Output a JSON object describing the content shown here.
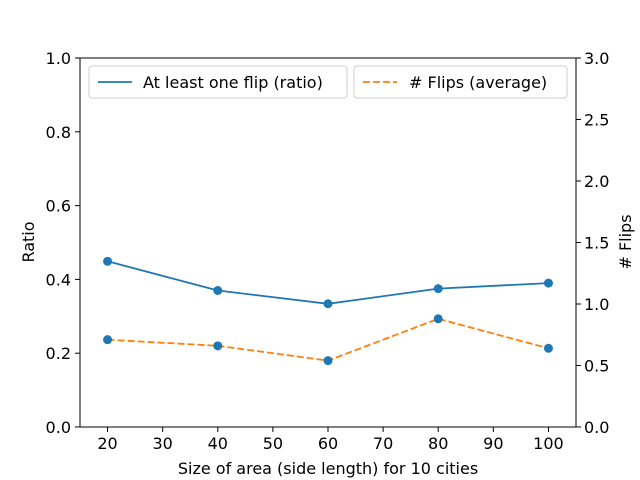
{
  "chart_data": {
    "type": "line",
    "title": "",
    "xlabel": "Size of area (side length) for 10 cities",
    "ylabel": "Ratio",
    "y2label": "# Flips",
    "x": [
      20,
      40,
      60,
      80,
      100
    ],
    "xlim": [
      15,
      105
    ],
    "xticks": [
      20,
      30,
      40,
      50,
      60,
      70,
      80,
      90,
      100
    ],
    "ylim": [
      0,
      1.0
    ],
    "yticks": [
      "0.0",
      "0.2",
      "0.4",
      "0.6",
      "0.8",
      "1.0"
    ],
    "y2lim": [
      0,
      3.0
    ],
    "y2ticks": [
      "0.0",
      "0.5",
      "1.0",
      "1.5",
      "2.0",
      "2.5",
      "3.0"
    ],
    "marker_color": "#1f77b4",
    "series": [
      {
        "name": "At least one flip (ratio)",
        "axis": "left",
        "values": [
          0.449,
          0.37,
          0.334,
          0.375,
          0.39
        ],
        "color": "#1f77b4",
        "style": "solid"
      },
      {
        "name": "# Flips (average)",
        "axis": "right",
        "values": [
          0.71,
          0.66,
          0.54,
          0.88,
          0.64
        ],
        "color": "#ff7f0e",
        "style": "dashed"
      }
    ]
  }
}
